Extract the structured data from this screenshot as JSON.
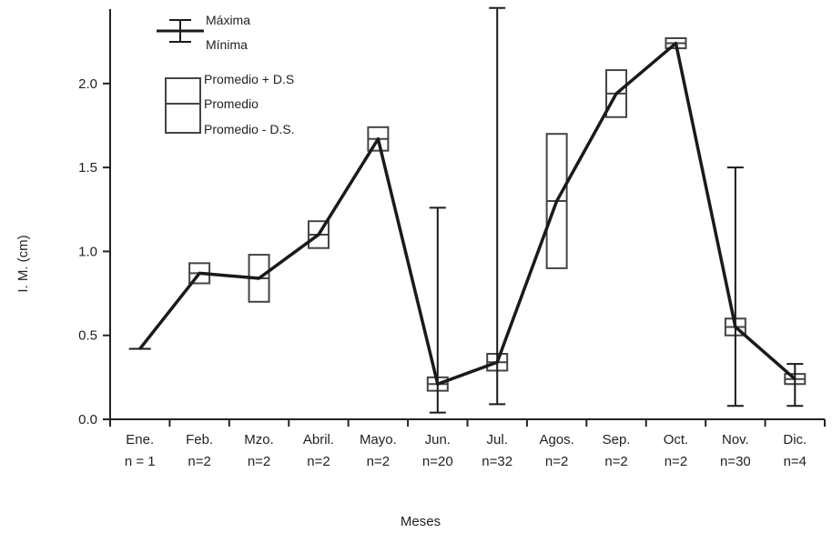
{
  "chart_data": {
    "type": "box",
    "xlabel": "Meses",
    "ylabel": "I. M. (cm)",
    "ylim": [
      0,
      2.4
    ],
    "yticks": [
      "0.0",
      "0.5",
      "1.0",
      "1.5",
      "2.0"
    ],
    "grid": false,
    "legend_position": "top-left",
    "categories": [
      {
        "month": "Ene.",
        "n": "n = 1"
      },
      {
        "month": "Feb.",
        "n": "n=2"
      },
      {
        "month": "Mzo.",
        "n": "n=2"
      },
      {
        "month": "Abril.",
        "n": "n=2"
      },
      {
        "month": "Mayo.",
        "n": "n=2"
      },
      {
        "month": "Jun.",
        "n": "n=20"
      },
      {
        "month": "Jul.",
        "n": "n=32"
      },
      {
        "month": "Agos.",
        "n": "n=2"
      },
      {
        "month": "Sep.",
        "n": "n=2"
      },
      {
        "month": "Oct.",
        "n": "n=2"
      },
      {
        "month": "Nov.",
        "n": "n=30"
      },
      {
        "month": "Dic.",
        "n": "n=4"
      }
    ],
    "stats": [
      {
        "mean": 0.42,
        "sd_low": null,
        "sd_high": null,
        "min": null,
        "max": null
      },
      {
        "mean": 0.87,
        "sd_low": 0.81,
        "sd_high": 0.93,
        "min": null,
        "max": null
      },
      {
        "mean": 0.84,
        "sd_low": 0.7,
        "sd_high": 0.98,
        "min": null,
        "max": null
      },
      {
        "mean": 1.1,
        "sd_low": 1.02,
        "sd_high": 1.18,
        "min": null,
        "max": null
      },
      {
        "mean": 1.67,
        "sd_low": 1.6,
        "sd_high": 1.74,
        "min": null,
        "max": null
      },
      {
        "mean": 0.21,
        "sd_low": 0.17,
        "sd_high": 0.25,
        "min": 0.04,
        "max": 1.26
      },
      {
        "mean": 0.34,
        "sd_low": 0.29,
        "sd_high": 0.39,
        "min": 0.09,
        "max": 2.45
      },
      {
        "mean": 1.3,
        "sd_low": 0.9,
        "sd_high": 1.7,
        "min": null,
        "max": null
      },
      {
        "mean": 1.94,
        "sd_low": 1.8,
        "sd_high": 2.08,
        "min": null,
        "max": null
      },
      {
        "mean": 2.24,
        "sd_low": 2.21,
        "sd_high": 2.27,
        "min": null,
        "max": null
      },
      {
        "mean": 0.55,
        "sd_low": 0.5,
        "sd_high": 0.6,
        "min": 0.08,
        "max": 1.5
      },
      {
        "mean": 0.24,
        "sd_low": 0.21,
        "sd_high": 0.27,
        "min": 0.08,
        "max": 0.33
      }
    ],
    "legend": {
      "max_label": "Máxima",
      "min_label": "Mínima",
      "sd_high_label": "Promedio + D.S",
      "mean_label": "Promedio",
      "sd_low_label": "Promedio - D.S."
    },
    "colors": {
      "line": "#1a1a1a",
      "box": "#444444",
      "axis": "#222222"
    }
  }
}
